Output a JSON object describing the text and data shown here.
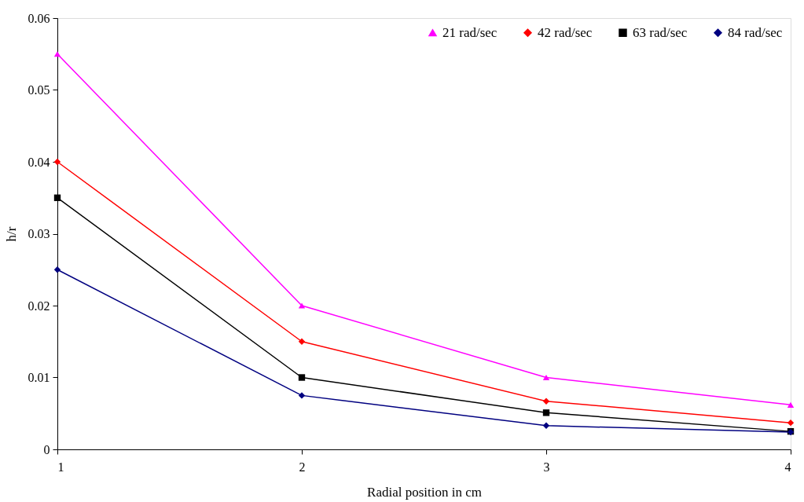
{
  "chart_data": {
    "type": "line",
    "xlabel": "Radial position in cm",
    "ylabel": "h/r",
    "x": [
      1,
      2,
      3,
      4
    ],
    "xlim": [
      1,
      4
    ],
    "xticks": [
      1,
      2,
      3,
      4
    ],
    "ylim": [
      0,
      0.06
    ],
    "yticks": [
      0,
      0.01,
      0.02,
      0.03,
      0.04,
      0.05,
      0.06
    ],
    "grid": false,
    "legend": "top right",
    "line_style": "solid",
    "series": [
      {
        "name": "21 rad/sec",
        "color": "#ff00ff",
        "marker": "triangle",
        "values": [
          0.055,
          0.02,
          0.01,
          0.0062
        ]
      },
      {
        "name": "42 rad/sec",
        "color": "#ff0000",
        "marker": "diamond",
        "values": [
          0.04,
          0.015,
          0.0067,
          0.0037
        ]
      },
      {
        "name": "63 rad/sec",
        "color": "#000000",
        "marker": "square",
        "values": [
          0.035,
          0.01,
          0.0051,
          0.0025
        ]
      },
      {
        "name": "84 rad/sec",
        "color": "#000080",
        "marker": "diamond",
        "values": [
          0.025,
          0.0075,
          0.0033,
          0.0024
        ]
      }
    ]
  }
}
